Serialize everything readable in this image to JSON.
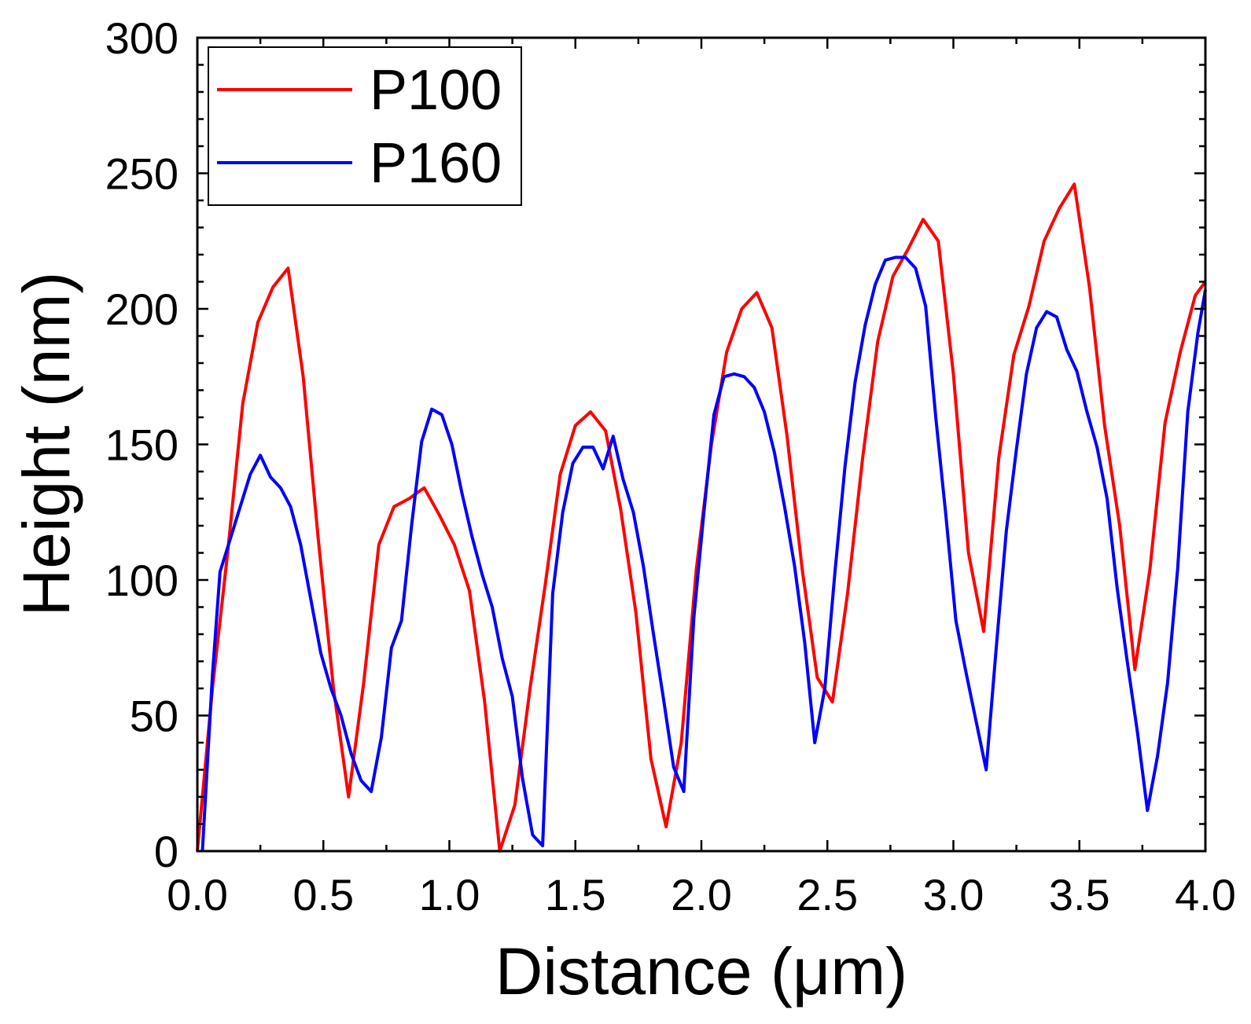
{
  "chart_data": {
    "type": "line",
    "title": "",
    "xlabel": "Distance (μm)",
    "ylabel": "Height (nm)",
    "xlim": [
      0.0,
      4.0
    ],
    "ylim": [
      0,
      300
    ],
    "xticks": [
      0.0,
      0.5,
      1.0,
      1.5,
      2.0,
      2.5,
      3.0,
      3.5,
      4.0
    ],
    "xtick_labels": [
      "0.0",
      "0.5",
      "1.0",
      "1.5",
      "2.0",
      "2.5",
      "3.0",
      "3.5",
      "4.0"
    ],
    "yticks": [
      0,
      50,
      100,
      150,
      200,
      250,
      300
    ],
    "ytick_labels": [
      "0",
      "50",
      "100",
      "150",
      "200",
      "250",
      "300"
    ],
    "grid": false,
    "legend": "top-left",
    "series": [
      {
        "name": "P100",
        "color": "#ff0000",
        "x": [
          0.0,
          0.06,
          0.12,
          0.18,
          0.24,
          0.3,
          0.36,
          0.42,
          0.48,
          0.54,
          0.6,
          0.66,
          0.72,
          0.78,
          0.84,
          0.9,
          0.96,
          1.02,
          1.08,
          1.14,
          1.2,
          1.26,
          1.32,
          1.38,
          1.44,
          1.5,
          1.56,
          1.62,
          1.68,
          1.74,
          1.8,
          1.86,
          1.92,
          1.98,
          2.04,
          2.1,
          2.16,
          2.22,
          2.28,
          2.34,
          2.4,
          2.46,
          2.52,
          2.58,
          2.64,
          2.7,
          2.76,
          2.82,
          2.88,
          2.94,
          3.0,
          3.06,
          3.12,
          3.18,
          3.24,
          3.3,
          3.36,
          3.42,
          3.48,
          3.54,
          3.6,
          3.66,
          3.72,
          3.78,
          3.84,
          3.9,
          3.96,
          4.0
        ],
        "y": [
          0,
          60,
          110,
          165,
          195,
          208,
          215,
          175,
          115,
          60,
          20,
          62,
          113,
          127,
          130,
          134,
          124,
          113,
          96,
          55,
          0,
          17,
          60,
          98,
          139,
          157,
          162,
          155,
          126,
          88,
          34,
          9,
          40,
          104,
          150,
          184,
          200,
          206,
          193,
          153,
          104,
          64,
          55,
          95,
          145,
          188,
          212,
          222,
          233,
          225,
          176,
          110,
          81,
          145,
          183,
          201,
          225,
          237,
          246,
          208,
          157,
          120,
          67,
          104,
          158,
          184,
          205,
          210
        ]
      },
      {
        "name": "P160",
        "color": "#0000ff",
        "x": [
          0.02,
          0.06,
          0.09,
          0.13,
          0.17,
          0.21,
          0.25,
          0.29,
          0.33,
          0.37,
          0.41,
          0.45,
          0.49,
          0.53,
          0.57,
          0.61,
          0.65,
          0.69,
          0.73,
          0.77,
          0.81,
          0.85,
          0.89,
          0.93,
          0.97,
          1.01,
          1.05,
          1.09,
          1.13,
          1.17,
          1.21,
          1.25,
          1.29,
          1.33,
          1.37,
          1.41,
          1.45,
          1.49,
          1.53,
          1.57,
          1.61,
          1.65,
          1.69,
          1.73,
          1.77,
          1.81,
          1.85,
          1.89,
          1.93,
          1.97,
          2.01,
          2.05,
          2.09,
          2.13,
          2.17,
          2.21,
          2.25,
          2.29,
          2.33,
          2.37,
          2.41,
          2.45,
          2.49,
          2.53,
          2.57,
          2.61,
          2.65,
          2.69,
          2.73,
          2.77,
          2.81,
          2.85,
          2.89,
          2.93,
          2.97,
          3.01,
          3.05,
          3.09,
          3.13,
          3.17,
          3.21,
          3.25,
          3.29,
          3.33,
          3.37,
          3.41,
          3.45,
          3.49,
          3.53,
          3.57,
          3.61,
          3.65,
          3.69,
          3.73,
          3.77,
          3.81,
          3.85,
          3.89,
          3.93,
          3.97,
          4.0
        ],
        "y": [
          0,
          65,
          103,
          115,
          127,
          139,
          146,
          138,
          134,
          127,
          113,
          93,
          73,
          60,
          50,
          36,
          26,
          22,
          42,
          75,
          85,
          120,
          151,
          163,
          161,
          150,
          132,
          116,
          102,
          90,
          71,
          57,
          27,
          6,
          2,
          95,
          125,
          143,
          149,
          149,
          141,
          153,
          137,
          125,
          105,
          80,
          56,
          31,
          22,
          86,
          125,
          161,
          175,
          176,
          175,
          171,
          162,
          147,
          127,
          105,
          77,
          40,
          60,
          103,
          142,
          173,
          194,
          209,
          218,
          219,
          219,
          215,
          201,
          160,
          124,
          85,
          66,
          48,
          30,
          75,
          118,
          148,
          176,
          193,
          199,
          197,
          185,
          177,
          162,
          149,
          130,
          97,
          70,
          44,
          15,
          35,
          62,
          104,
          162,
          191,
          207
        ]
      }
    ]
  }
}
